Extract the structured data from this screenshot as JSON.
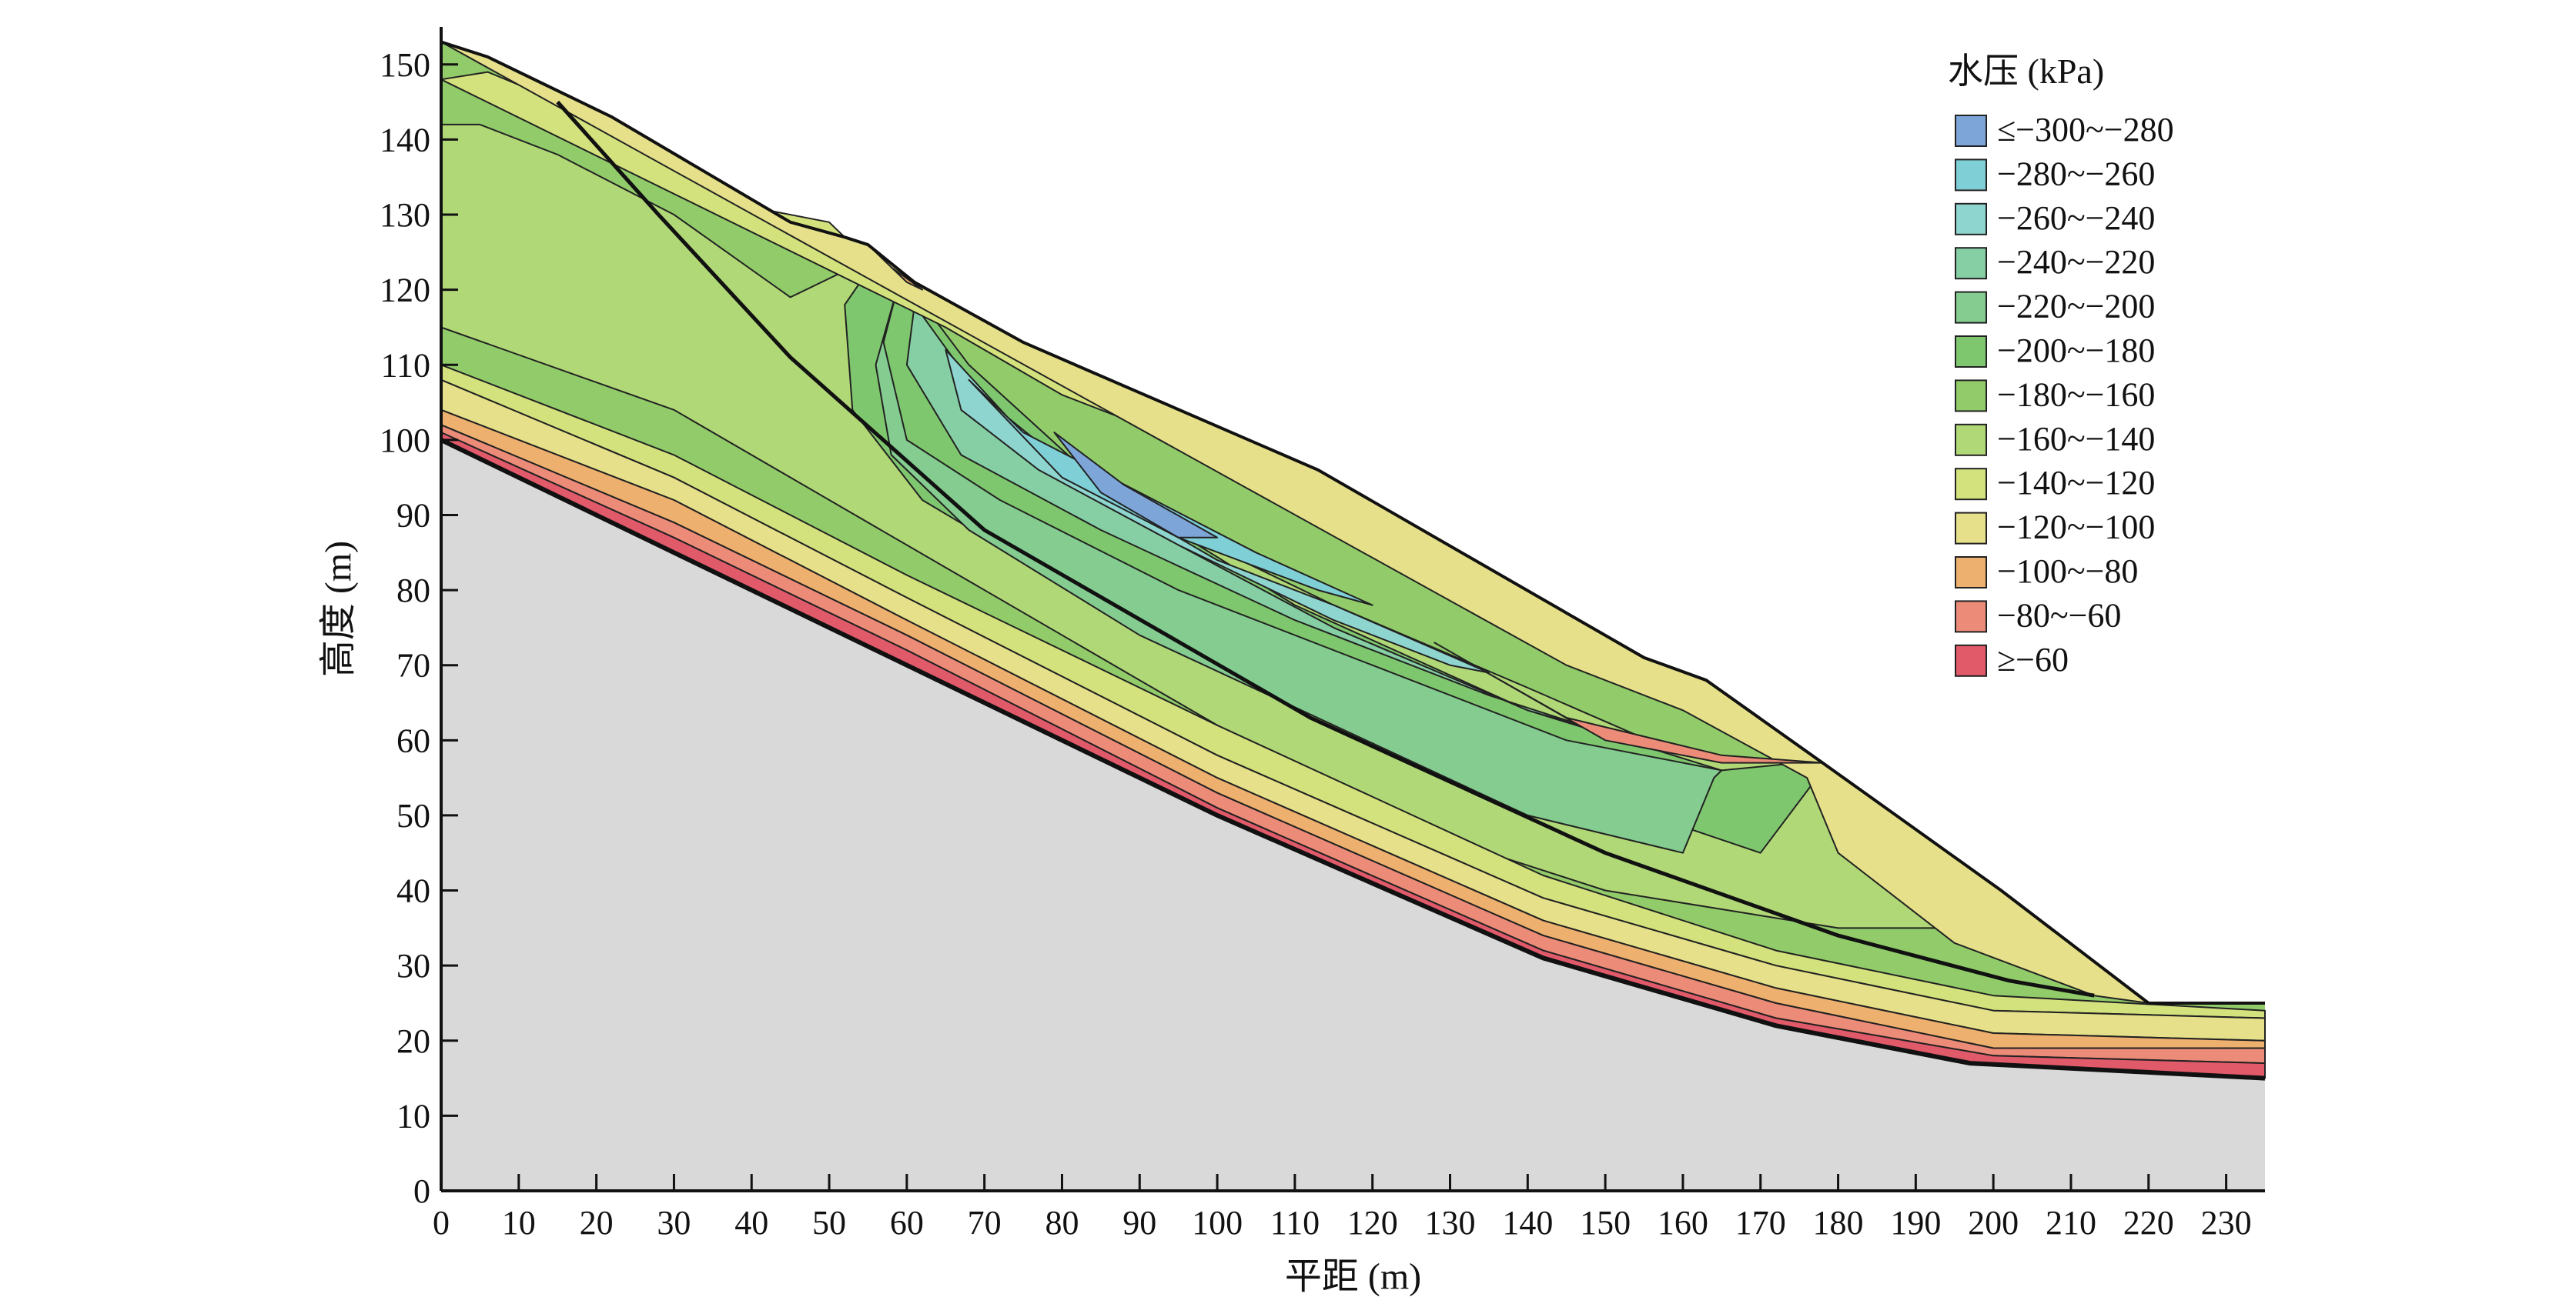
{
  "chart_data": {
    "type": "contour",
    "xlabel": "平距 (m)",
    "ylabel": "高度 (m)",
    "xlim": [
      0,
      235
    ],
    "ylim": [
      0,
      155
    ],
    "x_ticks": [
      0,
      10,
      20,
      30,
      40,
      50,
      60,
      70,
      80,
      90,
      100,
      110,
      120,
      130,
      140,
      150,
      160,
      170,
      180,
      190,
      200,
      210,
      220,
      230
    ],
    "y_ticks": [
      0,
      10,
      20,
      30,
      40,
      50,
      60,
      70,
      80,
      90,
      100,
      110,
      120,
      130,
      140,
      150
    ],
    "legend": {
      "title": "水压 (kPa)",
      "placement": "top-right",
      "entries": [
        {
          "label": "≤−300~−280",
          "color": "#7ea5d8"
        },
        {
          "label": "−280~−260",
          "color": "#7fcfd6"
        },
        {
          "label": "−260~−240",
          "color": "#8ed5cf"
        },
        {
          "label": "−240~−220",
          "color": "#86cfa4"
        },
        {
          "label": "−220~−200",
          "color": "#84cc90"
        },
        {
          "label": "−200~−180",
          "color": "#7fc76e"
        },
        {
          "label": "−180~−160",
          "color": "#92cc6a"
        },
        {
          "label": "−160~−140",
          "color": "#b1d877"
        },
        {
          "label": "−140~−120",
          "color": "#d4e27e"
        },
        {
          "label": "−120~−100",
          "color": "#e6e08a"
        },
        {
          "label": "−100~−80",
          "color": "#eeb06e"
        },
        {
          "label": "−80~−60",
          "color": "#ec8c78"
        },
        {
          "label": "≥−60",
          "color": "#e05a6a"
        }
      ]
    },
    "ground_surface": [
      [
        0,
        153
      ],
      [
        6,
        151
      ],
      [
        22,
        143
      ],
      [
        45,
        129
      ],
      [
        52,
        127
      ],
      [
        55,
        126
      ],
      [
        61,
        121
      ],
      [
        75,
        113
      ],
      [
        113,
        96
      ],
      [
        155,
        71
      ],
      [
        163,
        68
      ],
      [
        178,
        57
      ],
      [
        201,
        40
      ],
      [
        220,
        25
      ],
      [
        235,
        25
      ]
    ],
    "bedrock_surface": [
      [
        0,
        100
      ],
      [
        30,
        85
      ],
      [
        60,
        70
      ],
      [
        100,
        50
      ],
      [
        142,
        31
      ],
      [
        172,
        22
      ],
      [
        197,
        17
      ],
      [
        235,
        15
      ]
    ],
    "slip_surface": [
      [
        15,
        145
      ],
      [
        28,
        130
      ],
      [
        45,
        111
      ],
      [
        70,
        88
      ],
      [
        112,
        63
      ],
      [
        150,
        45
      ],
      [
        180,
        34
      ],
      [
        202,
        28
      ],
      [
        213,
        26
      ]
    ],
    "contours": [
      {
        "band": "−160~−140",
        "points": [
          [
            0,
            142
          ],
          [
            5,
            142
          ],
          [
            15,
            138
          ],
          [
            30,
            130
          ],
          [
            45,
            119
          ],
          [
            55,
            124
          ],
          [
            62,
            113
          ],
          [
            75,
            102
          ],
          [
            95,
            88
          ],
          [
            115,
            78
          ],
          [
            140,
            67
          ],
          [
            160,
            58
          ],
          [
            175,
            57
          ],
          [
            180,
            50
          ],
          [
            190,
            42
          ],
          [
            195,
            35
          ],
          [
            180,
            35
          ],
          [
            150,
            40
          ],
          [
            120,
            50
          ],
          [
            90,
            68
          ],
          [
            60,
            86
          ],
          [
            30,
            104
          ],
          [
            0,
            115
          ]
        ]
      },
      {
        "band": "−200~−180",
        "points": [
          [
            56,
            124
          ],
          [
            52,
            118
          ],
          [
            53,
            104
          ],
          [
            62,
            92
          ],
          [
            75,
            84
          ],
          [
            100,
            72
          ],
          [
            125,
            62
          ],
          [
            150,
            52
          ],
          [
            170,
            45
          ],
          [
            178,
            56
          ],
          [
            175,
            57
          ],
          [
            165,
            56
          ],
          [
            140,
            64
          ],
          [
            110,
            78
          ],
          [
            85,
            94
          ],
          [
            68,
            110
          ],
          [
            60,
            121
          ]
        ]
      },
      {
        "band": "−220~−200",
        "points": [
          [
            59,
            121
          ],
          [
            57,
            113
          ],
          [
            60,
            100
          ],
          [
            72,
            92
          ],
          [
            95,
            80
          ],
          [
            120,
            70
          ],
          [
            145,
            60
          ],
          [
            165,
            56
          ],
          [
            164,
            55
          ],
          [
            160,
            45
          ],
          [
            140,
            50
          ],
          [
            115,
            62
          ],
          [
            90,
            74
          ],
          [
            68,
            88
          ],
          [
            58,
            98
          ],
          [
            56,
            110
          ]
        ]
      },
      {
        "band": "−240~−220",
        "points": [
          [
            61,
            118
          ],
          [
            60,
            110
          ],
          [
            67,
            98
          ],
          [
            85,
            88
          ],
          [
            110,
            76
          ],
          [
            135,
            66
          ],
          [
            150,
            61
          ],
          [
            140,
            64
          ],
          [
            115,
            75
          ],
          [
            95,
            86
          ],
          [
            78,
            98
          ],
          [
            68,
            108
          ]
        ]
      },
      {
        "band": "−260~−240",
        "points": [
          [
            65,
            112
          ],
          [
            67,
            104
          ],
          [
            77,
            96
          ],
          [
            95,
            86
          ],
          [
            115,
            76
          ],
          [
            130,
            70
          ],
          [
            135,
            69
          ],
          [
            115,
            78
          ],
          [
            100,
            84
          ],
          [
            85,
            93
          ],
          [
            73,
            103
          ]
        ]
      },
      {
        "band": "−280~−260",
        "points": [
          [
            68,
            108
          ],
          [
            75,
            101
          ],
          [
            90,
            93
          ],
          [
            105,
            85
          ],
          [
            120,
            78
          ],
          [
            113,
            80
          ],
          [
            95,
            87
          ],
          [
            80,
            95
          ]
        ]
      },
      {
        "band": "≤−300~−280",
        "points": [
          [
            79,
            101
          ],
          [
            88,
            94
          ],
          [
            100,
            87
          ],
          [
            95,
            87
          ],
          [
            85,
            93
          ]
        ]
      },
      {
        "band": "−140~−120",
        "points": [
          [
            0,
            148
          ],
          [
            6,
            149
          ],
          [
            20,
            143
          ],
          [
            40,
            131
          ],
          [
            50,
            129
          ],
          [
            55,
            124
          ],
          [
            60,
            121
          ],
          [
            75,
            111
          ],
          [
            113,
            94
          ],
          [
            140,
            74
          ],
          [
            145,
            72
          ],
          [
            120,
            86
          ],
          [
            100,
            98
          ],
          [
            80,
            106
          ],
          [
            65,
            115
          ]
        ]
      },
      {
        "band": "−120~−100",
        "points": [
          [
            0,
            153
          ],
          [
            6,
            151
          ],
          [
            22,
            143
          ],
          [
            45,
            129
          ],
          [
            52,
            127
          ],
          [
            55,
            126
          ],
          [
            61,
            121
          ],
          [
            75,
            113
          ],
          [
            113,
            96
          ],
          [
            155,
            71
          ],
          [
            163,
            68
          ],
          [
            178,
            57
          ],
          [
            201,
            40
          ],
          [
            220,
            25
          ],
          [
            213,
            26
          ],
          [
            195,
            33
          ],
          [
            180,
            45
          ],
          [
            176,
            55
          ],
          [
            160,
            64
          ],
          [
            145,
            70
          ]
        ]
      },
      {
        "band": "−100~−80",
        "points": [
          [
            55,
            126
          ],
          [
            58,
            123
          ],
          [
            62,
            120
          ],
          [
            60,
            121
          ]
        ]
      },
      {
        "band": "−80~−60",
        "points": [
          [
            128,
            73
          ],
          [
            145,
            63
          ],
          [
            165,
            58
          ],
          [
            178,
            57
          ],
          [
            165,
            57
          ],
          [
            150,
            60
          ]
        ]
      },
      {
        "band": "−140~−120",
        "points": [
          [
            0,
            110
          ],
          [
            30,
            98
          ],
          [
            60,
            82
          ],
          [
            100,
            62
          ],
          [
            142,
            42
          ],
          [
            172,
            32
          ],
          [
            200,
            26
          ],
          [
            235,
            24
          ],
          [
            235,
            23
          ],
          [
            200,
            24
          ],
          [
            172,
            30
          ],
          [
            142,
            39
          ],
          [
            100,
            58
          ],
          [
            60,
            79
          ],
          [
            30,
            95
          ],
          [
            0,
            108
          ]
        ]
      },
      {
        "band": "−120~−100",
        "points": [
          [
            0,
            108
          ],
          [
            30,
            95
          ],
          [
            60,
            79
          ],
          [
            100,
            58
          ],
          [
            142,
            39
          ],
          [
            172,
            30
          ],
          [
            200,
            24
          ],
          [
            235,
            23
          ],
          [
            235,
            20
          ],
          [
            200,
            21
          ],
          [
            172,
            27
          ],
          [
            142,
            36
          ],
          [
            100,
            55
          ],
          [
            60,
            76
          ],
          [
            30,
            92
          ],
          [
            0,
            104
          ]
        ]
      },
      {
        "band": "−100~−80",
        "points": [
          [
            0,
            104
          ],
          [
            30,
            92
          ],
          [
            60,
            76
          ],
          [
            100,
            55
          ],
          [
            142,
            36
          ],
          [
            172,
            27
          ],
          [
            200,
            21
          ],
          [
            235,
            20
          ],
          [
            235,
            19
          ],
          [
            200,
            19
          ],
          [
            172,
            25
          ],
          [
            142,
            34
          ],
          [
            100,
            53
          ],
          [
            60,
            74
          ],
          [
            30,
            89
          ],
          [
            0,
            102
          ]
        ]
      },
      {
        "band": "−80~−60",
        "points": [
          [
            0,
            102
          ],
          [
            30,
            89
          ],
          [
            60,
            74
          ],
          [
            100,
            53
          ],
          [
            142,
            34
          ],
          [
            172,
            25
          ],
          [
            200,
            19
          ],
          [
            235,
            19
          ],
          [
            235,
            17
          ],
          [
            200,
            18
          ],
          [
            172,
            23
          ],
          [
            142,
            32
          ],
          [
            100,
            51
          ],
          [
            60,
            72
          ],
          [
            30,
            87
          ],
          [
            0,
            101
          ]
        ]
      },
      {
        "band": "≥−60",
        "points": [
          [
            0,
            101
          ],
          [
            30,
            87
          ],
          [
            60,
            72
          ],
          [
            100,
            51
          ],
          [
            142,
            32
          ],
          [
            172,
            23
          ],
          [
            200,
            18
          ],
          [
            235,
            17
          ],
          [
            235,
            15
          ],
          [
            197,
            17
          ],
          [
            172,
            22
          ],
          [
            142,
            31
          ],
          [
            100,
            50
          ],
          [
            60,
            70
          ],
          [
            30,
            85
          ],
          [
            0,
            100
          ]
        ]
      }
    ]
  }
}
